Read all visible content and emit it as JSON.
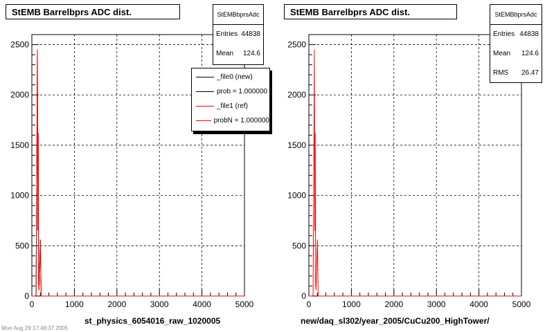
{
  "chart_data": [
    {
      "type": "line",
      "title": "StEMB Barrelbprs ADC dist.",
      "xlabel": "st_physics_6054016_raw_1020005",
      "xlim": [
        0,
        5000
      ],
      "ylim": [
        0,
        2600
      ],
      "xticks": [
        "0",
        "1000",
        "2000",
        "3000",
        "4000",
        "5000"
      ],
      "yticks": [
        "0",
        "500",
        "1000",
        "1500",
        "2000",
        "2500"
      ],
      "grid": true,
      "stats": {
        "name": "StEMBbprsAdc",
        "entries_label": "Entries",
        "entries": "44838",
        "mean_label": "Mean",
        "mean": "124.6"
      },
      "legend": {
        "placement": "top-right",
        "entries": [
          {
            "label": "_file0 (new)",
            "color": "#000000"
          },
          {
            "label": "prob = 1.000000",
            "color": "#000000"
          },
          {
            "label": "_file1 (ref)",
            "color": "#ff0000"
          },
          {
            "label": "probN = 1.000000",
            "color": "#ff0000"
          }
        ]
      },
      "series": [
        {
          "color": "#000000",
          "x": [
            0,
            80,
            100,
            120,
            130,
            140,
            150,
            160,
            170,
            180,
            200,
            220,
            240,
            5000
          ],
          "y": [
            0,
            0,
            10,
            1620,
            2450,
            650,
            1620,
            120,
            60,
            250,
            560,
            0,
            0,
            0
          ]
        },
        {
          "color": "#ff0000",
          "x": [
            0,
            80,
            100,
            120,
            130,
            140,
            150,
            160,
            170,
            180,
            200,
            220,
            240,
            5000
          ],
          "y": [
            0,
            0,
            10,
            1620,
            2450,
            650,
            1620,
            120,
            60,
            250,
            560,
            0,
            0,
            0
          ]
        }
      ]
    },
    {
      "type": "line",
      "title": "StEMB Barrelbprs ADC dist.",
      "xlabel": "new/daq_sl302/year_2005/CuCu200_HighTower/",
      "xlim": [
        0,
        5000
      ],
      "ylim": [
        0,
        2600
      ],
      "xticks": [
        "0",
        "1000",
        "2000",
        "3000",
        "4000",
        "5000"
      ],
      "yticks": [
        "0",
        "500",
        "1000",
        "1500",
        "2000",
        "2500"
      ],
      "grid": true,
      "stats": {
        "name": "StEMBbprsAdc",
        "entries_label": "Entries",
        "entries": "44838",
        "mean_label": "Mean",
        "mean": "124.6",
        "rms_label": "RMS",
        "rms": "26.47"
      },
      "series": [
        {
          "color": "#ff0000",
          "x": [
            0,
            80,
            100,
            120,
            130,
            140,
            150,
            160,
            170,
            180,
            200,
            220,
            240,
            5000
          ],
          "y": [
            0,
            0,
            10,
            1620,
            2450,
            650,
            1620,
            120,
            60,
            250,
            560,
            0,
            0,
            0
          ]
        }
      ]
    }
  ],
  "footer_text": "Mon Aug 29 17:48:37 2005"
}
